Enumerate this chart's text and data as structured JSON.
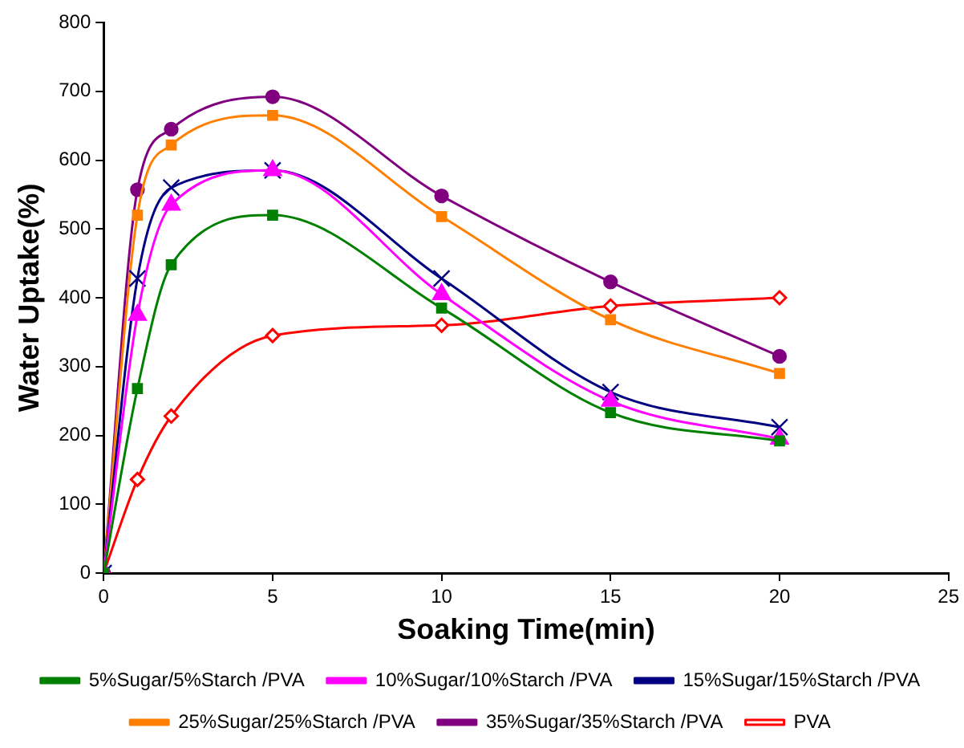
{
  "chart_data": {
    "type": "line",
    "xlabel": "Soaking Time(min)",
    "ylabel": "Water Uptake(%)",
    "xlim": [
      0,
      25
    ],
    "xticks": [
      0,
      5,
      10,
      15,
      20,
      25
    ],
    "ylim": [
      0,
      800
    ],
    "yticks": [
      0,
      100,
      200,
      300,
      400,
      500,
      600,
      700,
      800
    ],
    "grid": false,
    "legend": "bottom",
    "line_style": "solid",
    "x": [
      0,
      1,
      2,
      5,
      10,
      15,
      20
    ],
    "series": [
      {
        "name": "5%Sugar/5%Starch /PVA",
        "color": "#008000",
        "marker": "square",
        "values": [
          0,
          268,
          448,
          520,
          385,
          233,
          192
        ]
      },
      {
        "name": "10%Sugar/10%Starch /PVA",
        "color": "#ff00ff",
        "marker": "triangle",
        "values": [
          0,
          375,
          535,
          585,
          405,
          250,
          195
        ]
      },
      {
        "name": "15%Sugar/15%Starch /PVA",
        "color": "#000080",
        "marker": "cross",
        "values": [
          0,
          428,
          560,
          585,
          428,
          263,
          212
        ]
      },
      {
        "name": "25%Sugar/25%Starch /PVA",
        "color": "#ff7f00",
        "marker": "square",
        "values": [
          0,
          520,
          622,
          665,
          518,
          368,
          290
        ]
      },
      {
        "name": "35%Sugar/35%Starch /PVA",
        "color": "#800080",
        "marker": "circle",
        "values": [
          0,
          557,
          645,
          692,
          548,
          423,
          315
        ]
      },
      {
        "name": "PVA",
        "color": "#ff0000",
        "marker": "diamond",
        "values": [
          0,
          136,
          228,
          345,
          360,
          388,
          400
        ]
      }
    ]
  }
}
